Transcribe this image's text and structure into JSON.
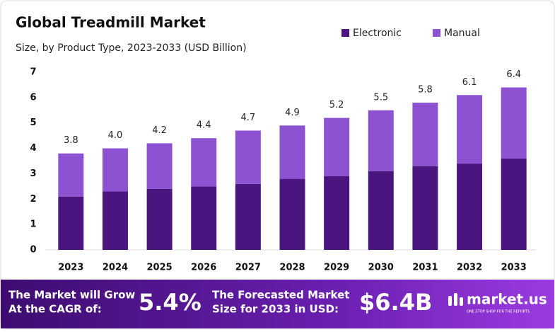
{
  "chart_data": {
    "type": "stacked_bar",
    "title": "Global Treadmill Market",
    "subtitle": "Size, by Product Type, 2023-2033 (USD Billion)",
    "categories": [
      "2023",
      "2024",
      "2025",
      "2026",
      "2027",
      "2028",
      "2029",
      "2030",
      "2031",
      "2032",
      "2033"
    ],
    "series": [
      {
        "name": "Electronic",
        "color": "#4b1580",
        "values": [
          2.1,
          2.3,
          2.4,
          2.5,
          2.6,
          2.8,
          2.9,
          3.1,
          3.3,
          3.4,
          3.6
        ]
      },
      {
        "name": "Manual",
        "color": "#8c52d1",
        "values": [
          1.7,
          1.7,
          1.8,
          1.9,
          2.1,
          2.1,
          2.3,
          2.4,
          2.5,
          2.7,
          2.8
        ]
      }
    ],
    "totals": {
      "values": [
        3.8,
        4.0,
        4.2,
        4.4,
        4.7,
        4.9,
        5.2,
        5.5,
        5.8,
        6.1,
        6.4
      ],
      "value_labels": [
        "3.8",
        "4.0",
        "4.2",
        "4.4",
        "4.7",
        "4.9",
        "5.2",
        "5.5",
        "5.8",
        "6.1",
        "6.4"
      ]
    },
    "ylim": [
      0,
      7
    ],
    "yticks": [
      0,
      1,
      2,
      3,
      4,
      5,
      6,
      7
    ],
    "grid": false,
    "legend": "top-right"
  },
  "footer": {
    "cagr_text": [
      "The Market will Grow",
      "At the CAGR of:"
    ],
    "cagr": "5.4%",
    "forecast_text": [
      "The Forecasted Market",
      "Size for 2033 in USD:"
    ],
    "forecast": "$6.4B",
    "brand": "market.us",
    "tagline": "ONE STOP SHOP FOR THE REPORTS"
  }
}
